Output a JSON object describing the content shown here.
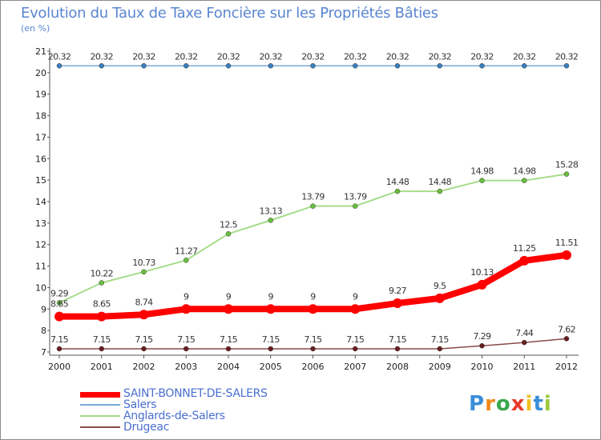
{
  "title": "Evolution du Taux de Taxe Foncière sur les Propriétés Bâties",
  "unit_label": "(en %)",
  "logo": {
    "text": "Proxiti",
    "letters": [
      "P",
      "r",
      "o",
      "x",
      "i",
      "t",
      "i"
    ],
    "colors": [
      "#3a8ed8",
      "#f08a1c",
      "#3aa84c",
      "#e83a2a",
      "#f0c020",
      "#3a8ed8",
      "#9bc83a"
    ]
  },
  "chart_data": {
    "type": "line",
    "title": "Evolution du Taux de Taxe Foncière sur les Propriétés Bâties",
    "ylabel": "(en %)",
    "xlabel": "",
    "ylim": [
      7,
      21
    ],
    "yticks": [
      7,
      8,
      9,
      10,
      11,
      12,
      13,
      14,
      15,
      16,
      17,
      18,
      19,
      20,
      21
    ],
    "categories": [
      "2000",
      "2001",
      "2002",
      "2003",
      "2004",
      "2005",
      "2006",
      "2007",
      "2008",
      "2009",
      "2010",
      "2011",
      "2012"
    ],
    "grid": false,
    "legend": "bottom-left",
    "series": [
      {
        "name": "Salers",
        "color": "#7aaad6",
        "marker": "#3a7fbf",
        "width": 1.5,
        "labels": "above",
        "values": [
          20.32,
          20.32,
          20.32,
          20.32,
          20.32,
          20.32,
          20.32,
          20.32,
          20.32,
          20.32,
          20.32,
          20.32,
          20.32
        ],
        "value_labels": [
          "20.32",
          "20.32",
          "20.32",
          "20.32",
          "20.32",
          "20.32",
          "20.32",
          "20.32",
          "20.32",
          "20.32",
          "20.32",
          "20.32",
          "20.32"
        ]
      },
      {
        "name": "Anglards-de-Salers",
        "color": "#a6dc8a",
        "marker": "#6abf3c",
        "width": 2,
        "labels": "above",
        "values": [
          9.29,
          10.22,
          10.73,
          11.27,
          12.5,
          13.13,
          13.79,
          13.79,
          14.48,
          14.48,
          14.98,
          14.98,
          15.28
        ],
        "value_labels": [
          "9.29",
          "10.22",
          "10.73",
          "11.27",
          "12.5",
          "13.13",
          "13.79",
          "13.79",
          "14.48",
          "14.48",
          "14.98",
          "14.98",
          "15.28"
        ]
      },
      {
        "name": "Drugeac",
        "color": "#8a4a4a",
        "marker": "#6a1e1e",
        "width": 1.5,
        "labels": "above",
        "values": [
          7.15,
          7.15,
          7.15,
          7.15,
          7.15,
          7.15,
          7.15,
          7.15,
          7.15,
          7.15,
          7.29,
          7.44,
          7.62
        ],
        "value_labels": [
          "7.15",
          "7.15",
          "7.15",
          "7.15",
          "7.15",
          "7.15",
          "7.15",
          "7.15",
          "7.15",
          "7.15",
          "7.29",
          "7.44",
          "7.62"
        ]
      },
      {
        "name": "SAINT-BONNET-DE-SALERS",
        "color": "#ff0000",
        "marker": "#ff0000",
        "width": 8,
        "labels": "above",
        "values": [
          8.65,
          8.65,
          8.74,
          9,
          9,
          9,
          9,
          9,
          9.27,
          9.5,
          10.13,
          11.25,
          11.51
        ],
        "value_labels": [
          "8.65",
          "8.65",
          "8.74",
          "9",
          "9",
          "9",
          "9",
          "9",
          "9.27",
          "9.5",
          "10.13",
          "11.25",
          "11.51"
        ]
      }
    ]
  },
  "legend_items": [
    {
      "name": "SAINT-BONNET-DE-SALERS",
      "color": "#ff0000",
      "thickness": "thick"
    },
    {
      "name": "Salers",
      "color": "#7aaad6",
      "thickness": "thin"
    },
    {
      "name": "Anglards-de-Salers",
      "color": "#a6dc8a",
      "thickness": "thin"
    },
    {
      "name": "Drugeac",
      "color": "#8a4a4a",
      "thickness": "thin"
    }
  ]
}
